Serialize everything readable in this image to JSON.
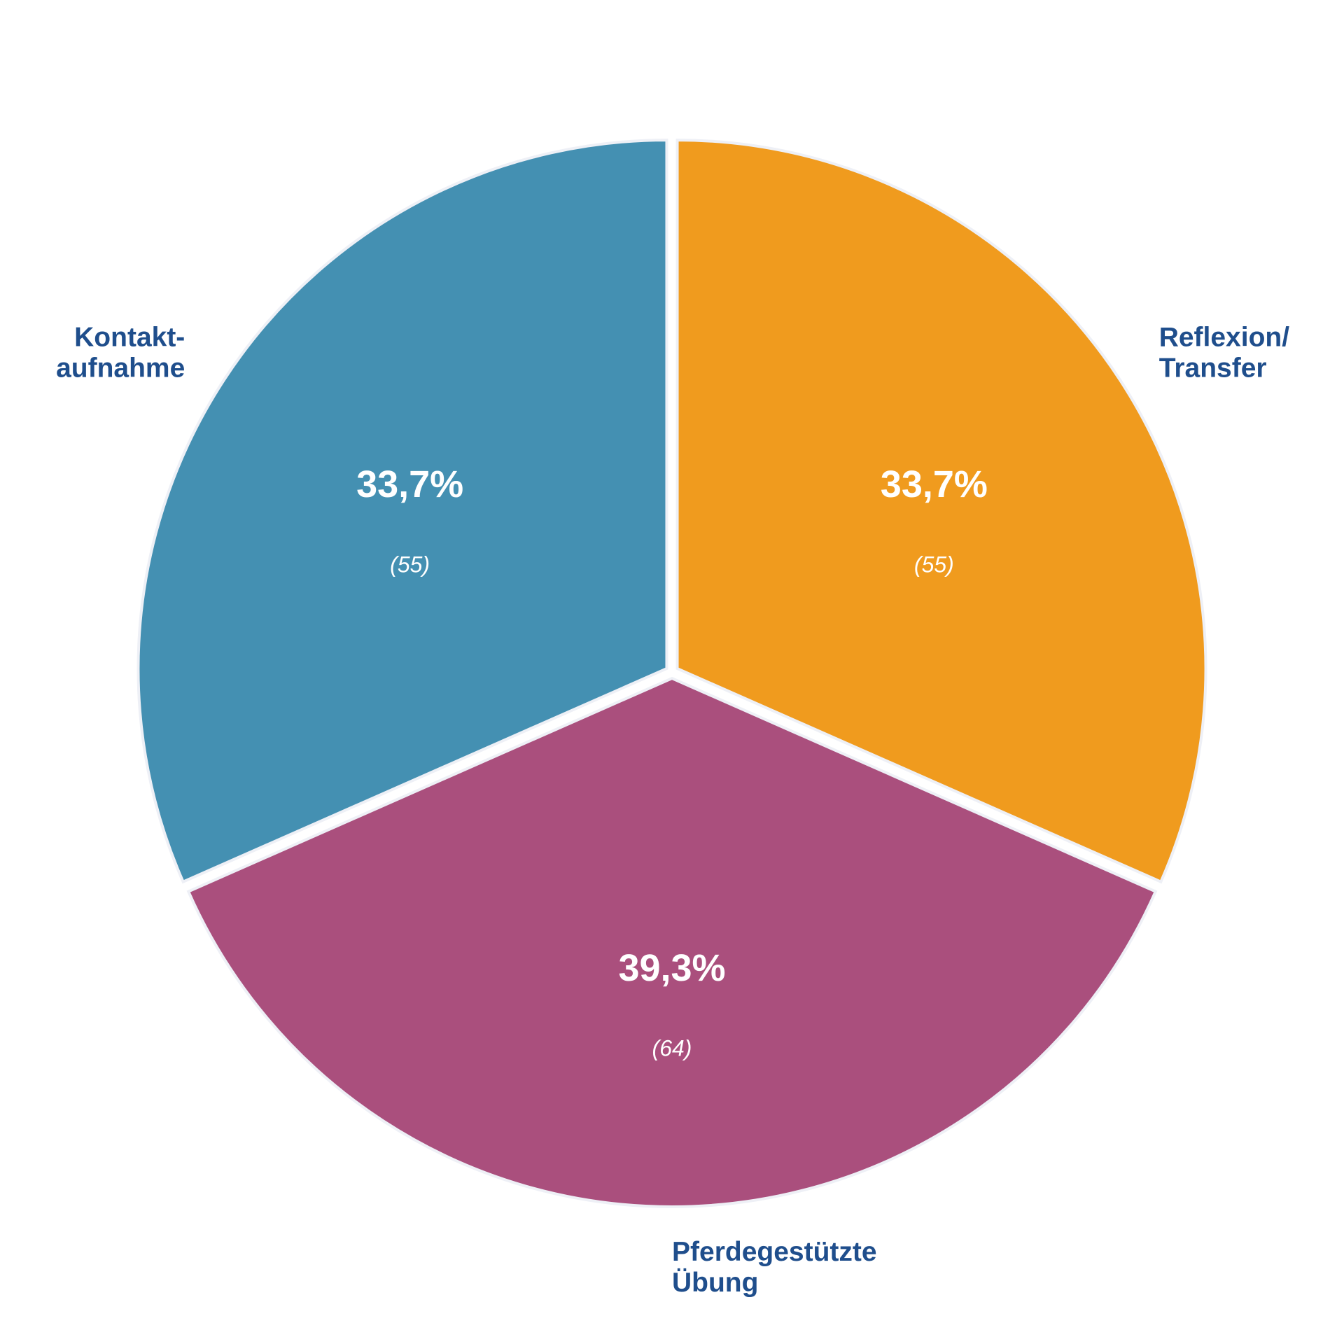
{
  "chart_data": {
    "type": "pie",
    "categories": [
      [
        "Reflexion/",
        "Transfer"
      ],
      [
        "Pferdegestützte",
        "Übung"
      ],
      [
        "Kontakt-",
        "aufnahme"
      ]
    ],
    "values": [
      55,
      64,
      55
    ],
    "value_labels": [
      "(55)",
      "(64)",
      "(55)"
    ],
    "percentages": [
      33.7,
      39.3,
      33.7
    ],
    "percentage_labels": [
      "33,7%",
      "39,3%",
      "33,7%"
    ],
    "colors": [
      "#f09b1e",
      "#aa4f7d",
      "#4490b2"
    ]
  }
}
